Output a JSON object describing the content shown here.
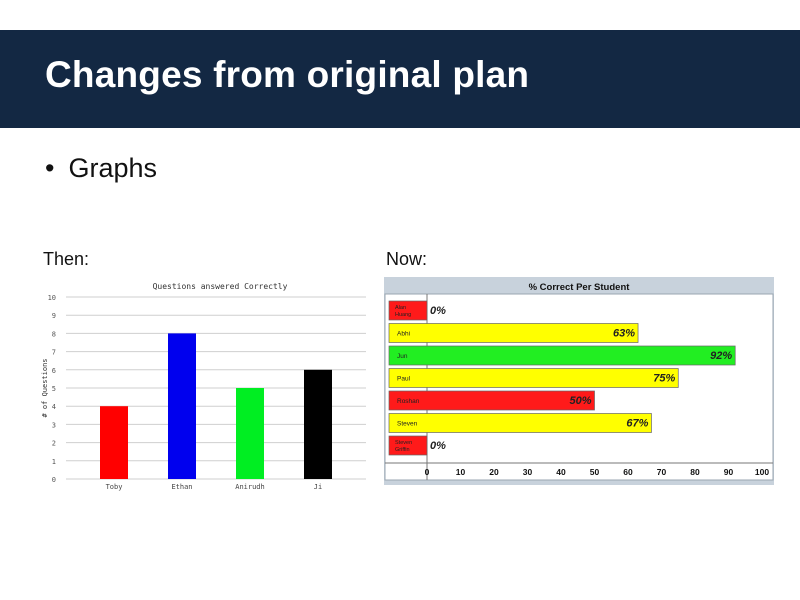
{
  "slide": {
    "title": "Changes from original plan",
    "bullet": "Graphs",
    "then_label": "Then:",
    "now_label": "Now:"
  },
  "chart_data": [
    {
      "type": "bar",
      "title": "Questions answered Correctly",
      "xlabel": "",
      "ylabel": "# of Questions",
      "categories": [
        "Toby",
        "Ethan",
        "Anirudh",
        "Ji"
      ],
      "values": [
        4,
        8,
        5,
        6
      ],
      "colors": [
        "#ff0000",
        "#0000ee",
        "#00ee22",
        "#000000"
      ],
      "yticks": [
        0,
        1,
        2,
        3,
        4,
        5,
        6,
        7,
        8,
        9,
        10
      ],
      "ylim": [
        0,
        10
      ],
      "grid": true
    },
    {
      "type": "bar",
      "orientation": "horizontal",
      "title": "% Correct Per Student",
      "categories": [
        "Alan Huang",
        "Abhi",
        "Jun",
        "Paul",
        "Roshan",
        "Steven",
        "Steven Griffin"
      ],
      "values": [
        0,
        63,
        92,
        75,
        50,
        67,
        0
      ],
      "value_labels": [
        "0%",
        "63%",
        "92%",
        "75%",
        "50%",
        "67%",
        "0%"
      ],
      "colors": [
        "#ff1a1a",
        "#ffff00",
        "#22ee22",
        "#ffff00",
        "#ff1a1a",
        "#ffff00",
        "#ff1a1a"
      ],
      "xticks": [
        0,
        10,
        20,
        30,
        40,
        50,
        60,
        70,
        80,
        90,
        100
      ],
      "xlim": [
        0,
        100
      ]
    }
  ]
}
